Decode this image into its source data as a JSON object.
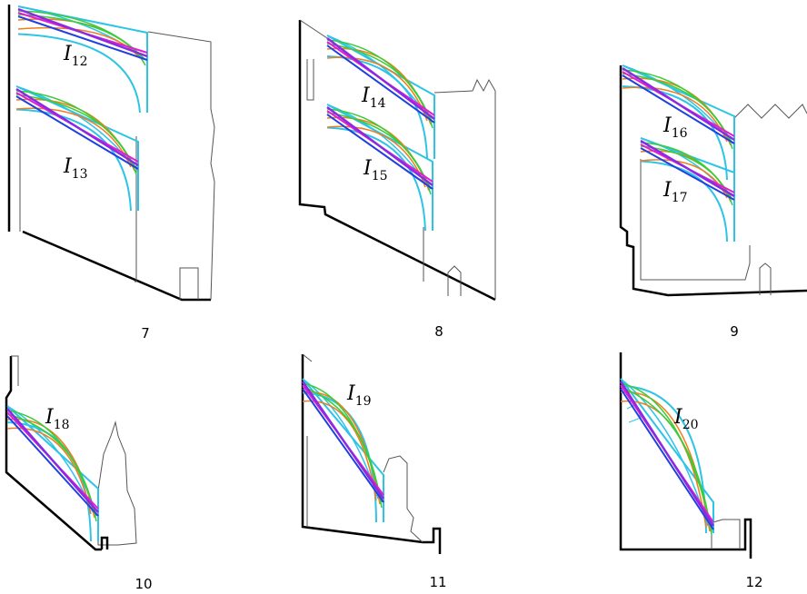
{
  "panels": [
    {
      "number": "7",
      "labels": [
        {
          "base": "I",
          "sub": "12"
        },
        {
          "base": "I",
          "sub": "13"
        }
      ]
    },
    {
      "number": "8",
      "labels": [
        {
          "base": "I",
          "sub": "14"
        },
        {
          "base": "I",
          "sub": "15"
        }
      ]
    },
    {
      "number": "9",
      "labels": [
        {
          "base": "I",
          "sub": "16"
        },
        {
          "base": "I",
          "sub": "17"
        }
      ]
    },
    {
      "number": "10",
      "labels": [
        {
          "base": "I",
          "sub": "18"
        }
      ]
    },
    {
      "number": "11",
      "labels": [
        {
          "base": "I",
          "sub": "19"
        }
      ]
    },
    {
      "number": "12",
      "labels": [
        {
          "base": "I",
          "sub": "20"
        }
      ]
    }
  ]
}
